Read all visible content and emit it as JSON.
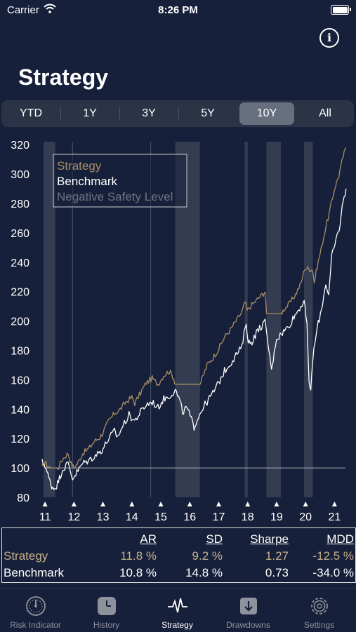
{
  "status_bar": {
    "carrier": "Carrier",
    "time": "8:26 PM"
  },
  "header": {
    "title": "Strategy",
    "info_icon": "info-circle-icon"
  },
  "periods": [
    {
      "label": "YTD",
      "active": false
    },
    {
      "label": "1Y",
      "active": false
    },
    {
      "label": "3Y",
      "active": false
    },
    {
      "label": "5Y",
      "active": false
    },
    {
      "label": "10Y",
      "active": true
    },
    {
      "label": "All",
      "active": false
    }
  ],
  "colors": {
    "strategy": "#a88e66",
    "benchmark": "#ffffff",
    "negative_safety": "#6d7380",
    "background": "#17203a",
    "band": "#3a4257"
  },
  "chart_data": {
    "type": "line",
    "x_tick_labels": [
      "11",
      "12",
      "13",
      "14",
      "15",
      "16",
      "17",
      "18",
      "19",
      "20",
      "21"
    ],
    "x_tick_years": [
      2011,
      2012,
      2013,
      2014,
      2015,
      2016,
      2017,
      2018,
      2019,
      2020,
      2021
    ],
    "xlim": [
      2010.9,
      2021.5
    ],
    "ylim": [
      80,
      322
    ],
    "y_ticks": [
      80,
      100,
      120,
      140,
      160,
      180,
      200,
      220,
      240,
      260,
      280,
      300,
      320
    ],
    "legend": [
      "Strategy",
      "Benchmark",
      "Negative Safety Level"
    ],
    "legend_position": "top-left",
    "baseline": 100,
    "negative_safety_bands": [
      [
        2010.95,
        2011.35
      ],
      [
        2015.5,
        2016.35
      ],
      [
        2017.9,
        2018.0
      ],
      [
        2018.65,
        2019.15
      ],
      [
        2019.95,
        2020.25
      ]
    ],
    "reference_lines": [
      2011.95,
      2014.65
    ],
    "series": [
      {
        "name": "Strategy",
        "points": [
          [
            2010.9,
            100
          ],
          [
            2011.0,
            104
          ],
          [
            2011.1,
            101
          ],
          [
            2011.2,
            100
          ],
          [
            2011.3,
            100
          ],
          [
            2011.45,
            100
          ],
          [
            2011.6,
            106
          ],
          [
            2011.8,
            110
          ],
          [
            2011.9,
            103
          ],
          [
            2012.0,
            100
          ],
          [
            2012.15,
            104
          ],
          [
            2012.3,
            110
          ],
          [
            2012.5,
            113
          ],
          [
            2012.7,
            118
          ],
          [
            2012.9,
            121
          ],
          [
            2013.0,
            124
          ],
          [
            2013.2,
            132
          ],
          [
            2013.4,
            137
          ],
          [
            2013.6,
            140
          ],
          [
            2013.8,
            145
          ],
          [
            2014.0,
            148
          ],
          [
            2014.1,
            144
          ],
          [
            2014.3,
            151
          ],
          [
            2014.5,
            158
          ],
          [
            2014.7,
            161
          ],
          [
            2014.9,
            157
          ],
          [
            2015.1,
            163
          ],
          [
            2015.3,
            166
          ],
          [
            2015.45,
            161
          ],
          [
            2015.5,
            157
          ],
          [
            2016.3,
            157
          ],
          [
            2016.35,
            157
          ],
          [
            2016.45,
            162
          ],
          [
            2016.6,
            170
          ],
          [
            2016.8,
            175
          ],
          [
            2017.0,
            181
          ],
          [
            2017.2,
            189
          ],
          [
            2017.4,
            194
          ],
          [
            2017.6,
            200
          ],
          [
            2017.8,
            206
          ],
          [
            2017.92,
            213
          ],
          [
            2017.98,
            207
          ],
          [
            2018.1,
            210
          ],
          [
            2018.3,
            214
          ],
          [
            2018.5,
            218
          ],
          [
            2018.6,
            220
          ],
          [
            2018.65,
            205
          ],
          [
            2019.15,
            205
          ],
          [
            2019.25,
            208
          ],
          [
            2019.45,
            212
          ],
          [
            2019.65,
            218
          ],
          [
            2019.85,
            226
          ],
          [
            2019.97,
            236
          ],
          [
            2020.25,
            235
          ],
          [
            2020.3,
            226
          ],
          [
            2020.4,
            237
          ],
          [
            2020.55,
            250
          ],
          [
            2020.7,
            264
          ],
          [
            2020.85,
            276
          ],
          [
            2021.0,
            290
          ],
          [
            2021.15,
            299
          ],
          [
            2021.3,
            312
          ],
          [
            2021.4,
            318
          ]
        ]
      },
      {
        "name": "Benchmark",
        "points": [
          [
            2010.9,
            104
          ],
          [
            2011.0,
            102
          ],
          [
            2011.1,
            95
          ],
          [
            2011.2,
            89
          ],
          [
            2011.3,
            86
          ],
          [
            2011.4,
            88
          ],
          [
            2011.5,
            93
          ],
          [
            2011.6,
            99
          ],
          [
            2011.8,
            103
          ],
          [
            2011.95,
            93
          ],
          [
            2012.1,
            97
          ],
          [
            2012.3,
            103
          ],
          [
            2012.5,
            105
          ],
          [
            2012.7,
            108
          ],
          [
            2012.9,
            111
          ],
          [
            2013.0,
            113
          ],
          [
            2013.2,
            120
          ],
          [
            2013.4,
            125
          ],
          [
            2013.5,
            121
          ],
          [
            2013.7,
            129
          ],
          [
            2013.9,
            136
          ],
          [
            2014.1,
            132
          ],
          [
            2014.3,
            138
          ],
          [
            2014.5,
            143
          ],
          [
            2014.7,
            145
          ],
          [
            2014.9,
            141
          ],
          [
            2015.1,
            147
          ],
          [
            2015.3,
            149
          ],
          [
            2015.5,
            153
          ],
          [
            2015.65,
            146
          ],
          [
            2015.75,
            138
          ],
          [
            2015.9,
            141
          ],
          [
            2016.05,
            133
          ],
          [
            2016.15,
            128
          ],
          [
            2016.3,
            135
          ],
          [
            2016.45,
            141
          ],
          [
            2016.6,
            145
          ],
          [
            2016.8,
            151
          ],
          [
            2017.0,
            158
          ],
          [
            2017.2,
            166
          ],
          [
            2017.4,
            171
          ],
          [
            2017.6,
            177
          ],
          [
            2017.8,
            182
          ],
          [
            2017.95,
            200
          ],
          [
            2018.02,
            185
          ],
          [
            2018.15,
            186
          ],
          [
            2018.3,
            192
          ],
          [
            2018.45,
            196
          ],
          [
            2018.6,
            199
          ],
          [
            2018.7,
            185
          ],
          [
            2018.8,
            170
          ],
          [
            2018.85,
            168
          ],
          [
            2018.92,
            181
          ],
          [
            2019.0,
            188
          ],
          [
            2019.2,
            192
          ],
          [
            2019.4,
            196
          ],
          [
            2019.6,
            203
          ],
          [
            2019.8,
            209
          ],
          [
            2019.95,
            214
          ],
          [
            2020.05,
            196
          ],
          [
            2020.12,
            160
          ],
          [
            2020.18,
            151
          ],
          [
            2020.25,
            175
          ],
          [
            2020.4,
            195
          ],
          [
            2020.55,
            208
          ],
          [
            2020.7,
            226
          ],
          [
            2020.8,
            217
          ],
          [
            2020.9,
            243
          ],
          [
            2021.05,
            255
          ],
          [
            2021.2,
            266
          ],
          [
            2021.3,
            283
          ],
          [
            2021.4,
            290
          ]
        ]
      }
    ]
  },
  "stats": {
    "headers": [
      "AR",
      "SD",
      "Sharpe",
      "MDD"
    ],
    "rows": [
      {
        "name": "Strategy",
        "values": [
          "11.8 %",
          "9.2 %",
          "1.27",
          "-12.5 %"
        ]
      },
      {
        "name": "Benchmark",
        "values": [
          "10.8 %",
          "14.8 %",
          "0.73",
          "-34.0 %"
        ]
      }
    ]
  },
  "tabbar": [
    {
      "label": "Risk Indicator",
      "icon": "gauge-icon",
      "active": false
    },
    {
      "label": "History",
      "icon": "clock-icon",
      "active": false
    },
    {
      "label": "Strategy",
      "icon": "pulse-icon",
      "active": true
    },
    {
      "label": "Drawdowns",
      "icon": "arrow-down-square-icon",
      "active": false
    },
    {
      "label": "Settings",
      "icon": "gear-icon",
      "active": false
    }
  ]
}
